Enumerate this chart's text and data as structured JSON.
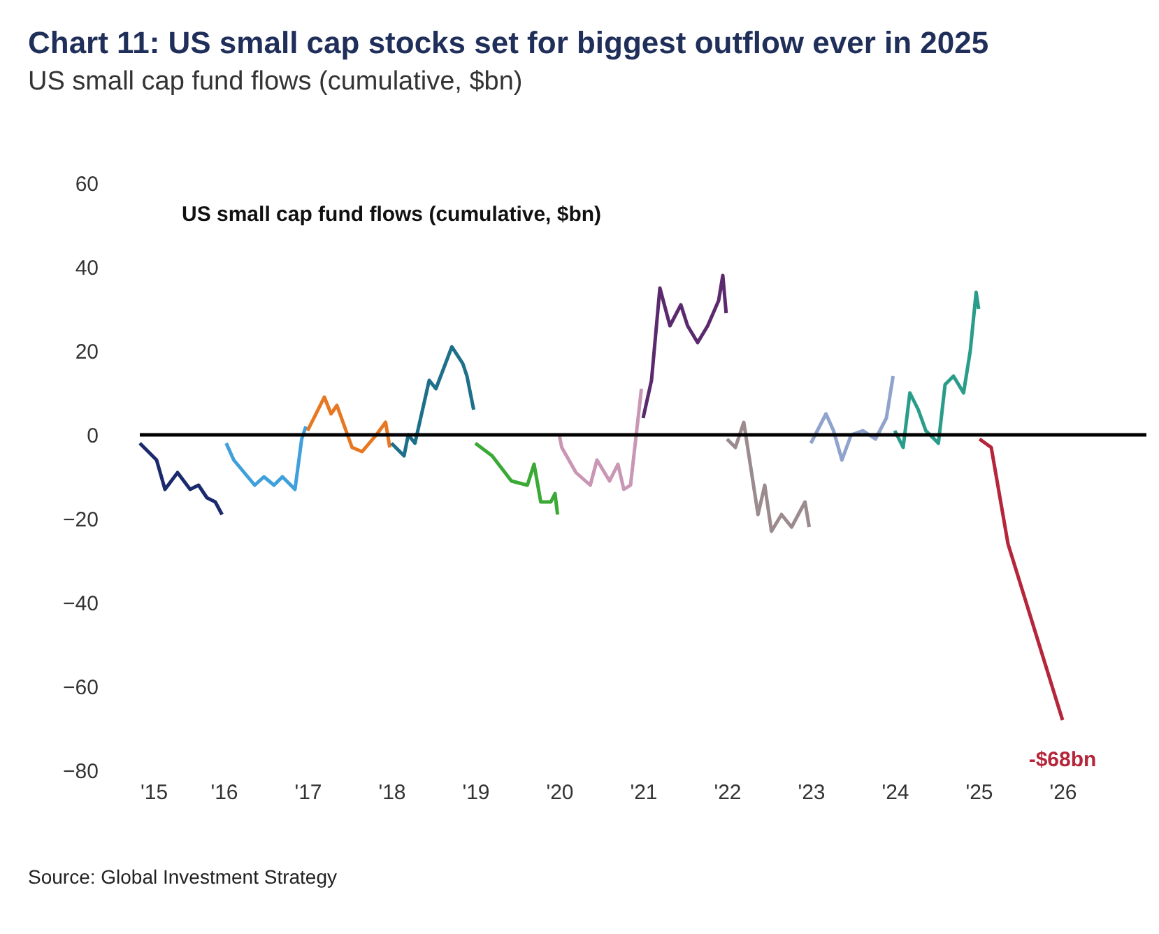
{
  "chart_data": {
    "type": "line",
    "title": "Chart 11: US small cap stocks set for biggest outflow ever in 2025",
    "subtitle": "US small cap fund flows (cumulative, $bn)",
    "annotations": [
      "US small cap fund flows (cumulative, $bn)",
      "Source: Global Investment Strategy",
      {
        "text": "-$68bn",
        "x": 2026.0,
        "y": -68
      }
    ],
    "xlim": [
      2015,
      2027
    ],
    "xticks": [
      {
        "value": 2015,
        "label": "'15"
      },
      {
        "value": 2016,
        "label": "'16"
      },
      {
        "value": 2017,
        "label": "'17"
      },
      {
        "value": 2018,
        "label": "'18"
      },
      {
        "value": 2019,
        "label": "'19"
      },
      {
        "value": 2020,
        "label": "'20"
      },
      {
        "value": 2021,
        "label": "'21"
      },
      {
        "value": 2022,
        "label": "'22"
      },
      {
        "value": 2023,
        "label": "'23"
      },
      {
        "value": 2024,
        "label": "'24"
      },
      {
        "value": 2025,
        "label": "'25"
      },
      {
        "value": 2026,
        "label": "'26"
      }
    ],
    "ylim": [
      -80,
      60
    ],
    "yticks": [
      -80,
      -60,
      -40,
      -20,
      0,
      20,
      40,
      60
    ],
    "grid": false,
    "legend": false,
    "marker": "none",
    "line_style": "solid",
    "ref_lines": [
      {
        "axis": "y",
        "value": 0,
        "color": "#000000"
      }
    ],
    "series": [
      {
        "color": "#1a2a6c",
        "x": [
          2015.0,
          2015.1,
          2015.2,
          2015.3,
          2015.45,
          2015.6,
          2015.7,
          2015.8,
          2015.9,
          2015.98
        ],
        "values": [
          -2,
          -4,
          -6,
          -13,
          -9,
          -13,
          -12,
          -15,
          -16,
          -19
        ]
      },
      {
        "color": "#3fa0dc",
        "x": [
          2016.03,
          2016.12,
          2016.37,
          2016.48,
          2016.6,
          2016.7,
          2016.85,
          2016.93,
          2016.98
        ],
        "values": [
          -2,
          -6,
          -12,
          -10,
          -12,
          -10,
          -13,
          -1,
          2
        ]
      },
      {
        "color": "#e87722",
        "x": [
          2017.0,
          2017.2,
          2017.28,
          2017.35,
          2017.53,
          2017.65,
          2017.82,
          2017.93,
          2017.98
        ],
        "values": [
          1,
          9,
          5,
          7,
          -3,
          -4,
          0,
          3,
          -3
        ]
      },
      {
        "color": "#1d6f8a",
        "x": [
          2018.0,
          2018.15,
          2018.2,
          2018.28,
          2018.45,
          2018.53,
          2018.72,
          2018.85,
          2018.9,
          2018.98
        ],
        "values": [
          -2,
          -5,
          0,
          -2,
          13,
          11,
          21,
          17,
          14,
          6
        ]
      },
      {
        "color": "#3aa935",
        "x": [
          2019.0,
          2019.2,
          2019.43,
          2019.62,
          2019.7,
          2019.78,
          2019.9,
          2019.95,
          2019.98
        ],
        "values": [
          -2,
          -5,
          -11,
          -12,
          -7,
          -16,
          -16,
          -14,
          -19
        ]
      },
      {
        "color": "#c997b5",
        "x": [
          2020.0,
          2020.03,
          2020.2,
          2020.37,
          2020.45,
          2020.6,
          2020.7,
          2020.77,
          2020.85,
          2020.98
        ],
        "values": [
          0,
          -3,
          -9,
          -12,
          -6,
          -11,
          -7,
          -13,
          -12,
          11
        ]
      },
      {
        "color": "#5b2a6e",
        "x": [
          2021.0,
          2021.1,
          2021.2,
          2021.32,
          2021.45,
          2021.53,
          2021.65,
          2021.77,
          2021.9,
          2021.95,
          2021.99
        ],
        "values": [
          4,
          13,
          35,
          26,
          31,
          26,
          22,
          26,
          32,
          38,
          29
        ]
      },
      {
        "color": "#9b8b8e",
        "x": [
          2022.0,
          2022.1,
          2022.2,
          2022.37,
          2022.45,
          2022.53,
          2022.65,
          2022.77,
          2022.93,
          2022.98
        ],
        "values": [
          -1,
          -3,
          3,
          -19,
          -12,
          -23,
          -19,
          -22,
          -16,
          -22
        ]
      },
      {
        "color": "#8fa3cc",
        "x": [
          2023.0,
          2023.18,
          2023.27,
          2023.37,
          2023.48,
          2023.62,
          2023.77,
          2023.9,
          2023.98
        ],
        "values": [
          -2,
          5,
          1,
          -6,
          0,
          1,
          -1,
          4,
          14
        ]
      },
      {
        "color": "#2a9d8a",
        "x": [
          2024.0,
          2024.1,
          2024.18,
          2024.28,
          2024.37,
          2024.52,
          2024.6,
          2024.7,
          2024.82,
          2024.9,
          2024.97,
          2025.0
        ],
        "values": [
          1,
          -3,
          10,
          6,
          1,
          -2,
          12,
          14,
          10,
          20,
          34,
          30
        ]
      },
      {
        "color": "#b5263b",
        "x": [
          2025.01,
          2025.15,
          2025.35,
          2026.0
        ],
        "values": [
          -1,
          -3,
          -26,
          -68
        ]
      }
    ]
  }
}
